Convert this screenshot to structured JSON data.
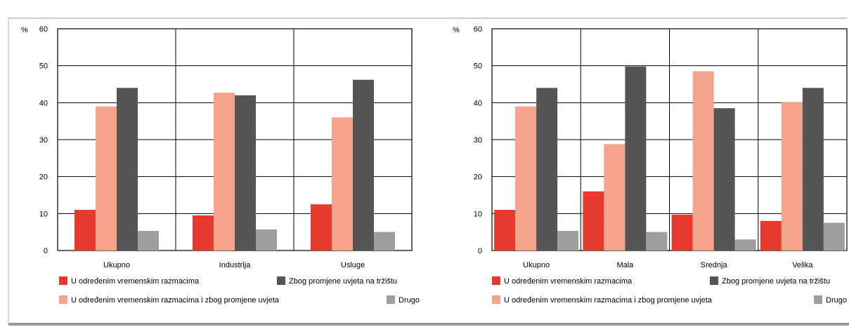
{
  "colors": {
    "series": [
      "#e8392e",
      "#f6a38c",
      "#555555",
      "#9e9e9e"
    ]
  },
  "chart_data": [
    {
      "type": "bar",
      "ylabel": "%",
      "ylim": [
        0,
        60
      ],
      "yticks": [
        0,
        10,
        20,
        30,
        40,
        50,
        60
      ],
      "grid": true,
      "categories": [
        "Ukupno",
        "Industrija",
        "Usluge"
      ],
      "series": [
        {
          "name": "U određenim vremenskim razmacima",
          "values": [
            11,
            9.5,
            12.5
          ]
        },
        {
          "name": "U određenim vremenskim razmacima i zbog promjene uvjeta",
          "values": [
            39,
            42.7,
            36
          ]
        },
        {
          "name": "Zbog promjene uvjeta na tržištu",
          "values": [
            44,
            42,
            46.2
          ]
        },
        {
          "name": "Drugo",
          "values": [
            5.3,
            5.7,
            5
          ]
        }
      ]
    },
    {
      "type": "bar",
      "ylabel": "%",
      "ylim": [
        0,
        60
      ],
      "yticks": [
        0,
        10,
        20,
        30,
        40,
        50,
        60
      ],
      "grid": true,
      "categories": [
        "Ukupno",
        "Mala",
        "Srednja",
        "Velika"
      ],
      "series": [
        {
          "name": "U određenim vremenskim razmacima",
          "values": [
            11,
            16,
            9.7,
            8
          ]
        },
        {
          "name": "U određenim vremenskim razmacima i zbog promjene uvjeta",
          "values": [
            39,
            28.8,
            48.5,
            40.2
          ]
        },
        {
          "name": "Zbog promjene uvjeta na tržištu",
          "values": [
            44,
            49.8,
            38.5,
            44
          ]
        },
        {
          "name": "Drugo",
          "values": [
            5.3,
            5,
            3,
            7.5
          ]
        }
      ]
    }
  ]
}
